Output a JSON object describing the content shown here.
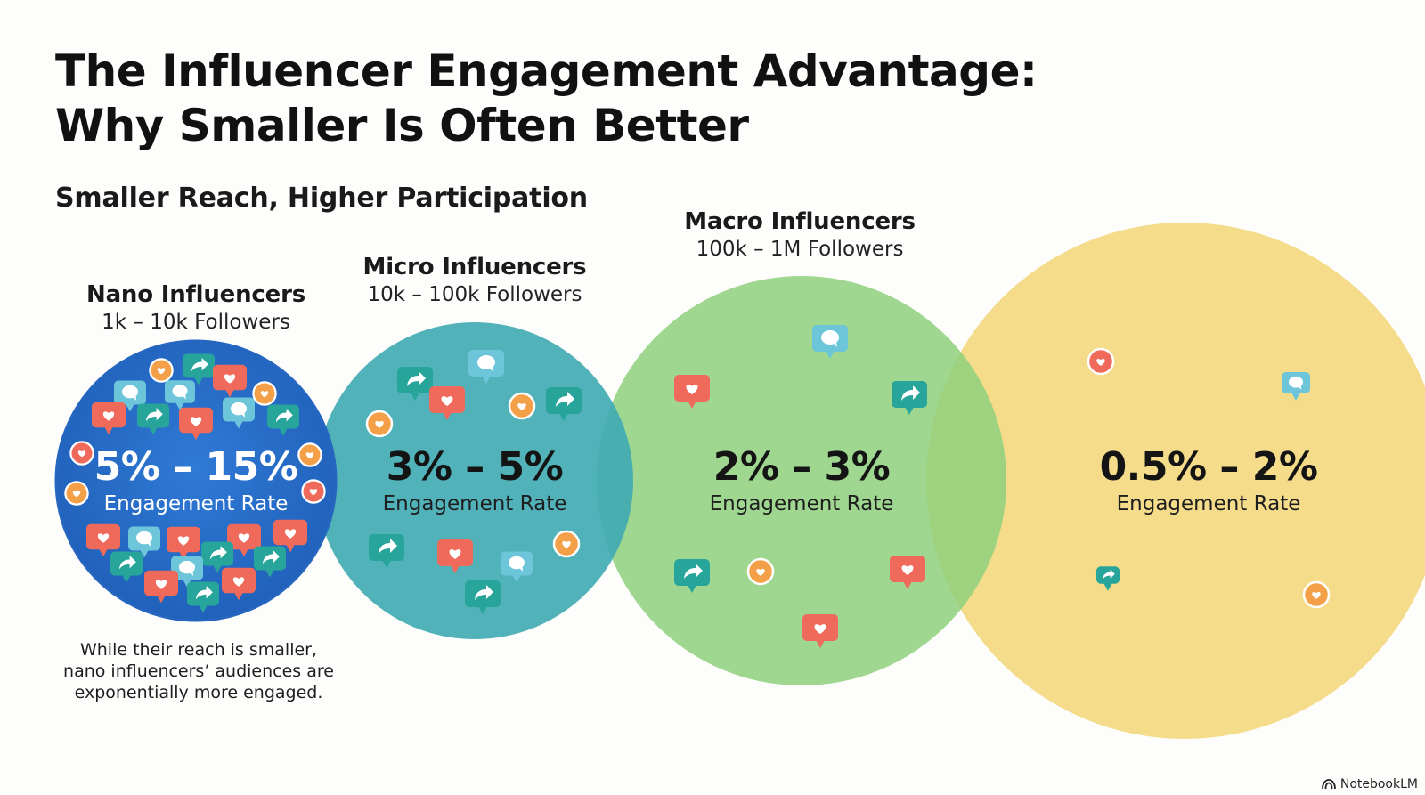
{
  "title_line1": "The Influencer Engagement Advantage:",
  "title_line2": "Why Smaller Is Often Better",
  "subtitle": "Smaller Reach, Higher Participation",
  "tiers": [
    {
      "name": "Nano Influencers",
      "followers": "1k – 10k Followers",
      "rate": "5% – 15%",
      "rate_label": "Engagement Rate"
    },
    {
      "name": "Micro Influencers",
      "followers": "10k – 100k Followers",
      "rate": "3% – 5%",
      "rate_label": "Engagement Rate"
    },
    {
      "name": "Macro Influencers",
      "followers": "100k – 1M Followers",
      "rate": "2% – 3%",
      "rate_label": "Engagement Rate"
    },
    {
      "name": "",
      "followers": "",
      "rate": "0.5% – 2%",
      "rate_label": "Engagement Rate"
    }
  ],
  "note_line1": "While their reach is smaller,",
  "note_line2": "nano influencers’ audiences are",
  "note_line3": "exponentially more engaged.",
  "brand": "NotebookLM",
  "colors": {
    "nano": "#2a6fc9",
    "micro": "#3eaab3",
    "macro": "#8fd07e",
    "mega": "#f3d77a",
    "heart": "#ef6a5a",
    "share": "#27a59a",
    "comment": "#6cc5d8",
    "orange_heart": "#f3a048"
  },
  "icon_types": [
    "heart-bubble-icon",
    "share-bubble-icon",
    "comment-bubble-icon",
    "heart-badge-icon"
  ]
}
